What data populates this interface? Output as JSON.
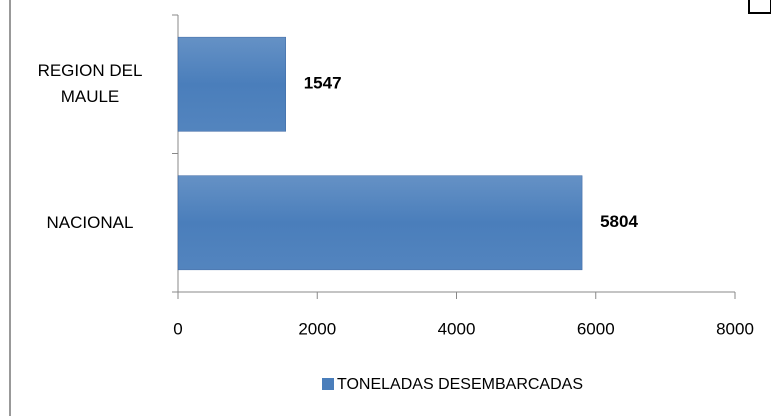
{
  "chart_data": {
    "type": "bar",
    "orientation": "horizontal",
    "categories": [
      "REGION DEL MAULE",
      "NACIONAL"
    ],
    "series": [
      {
        "name": "TONELADAS DESEMBARCADAS",
        "color": "#4a7ebb",
        "values": [
          1547,
          5804
        ]
      }
    ],
    "xlim": [
      0,
      8000
    ],
    "xticks": [
      0,
      2000,
      4000,
      6000,
      8000
    ],
    "legend": "bottom"
  }
}
